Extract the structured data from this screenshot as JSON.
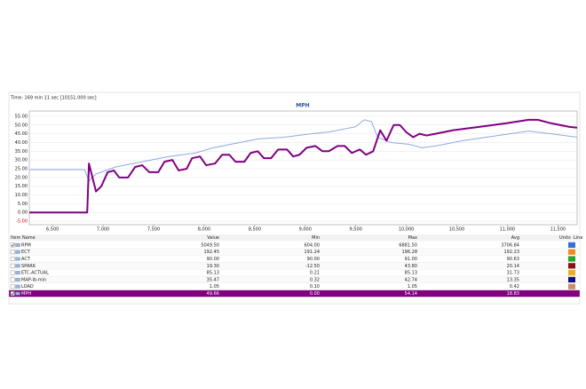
{
  "header": {
    "time": "Time: 169 min 11 sec [10151.000 sec]"
  },
  "chart_data": {
    "type": "line",
    "title": "MPH",
    "xlim": [
      6270,
      11690
    ],
    "ylim": [
      -7,
      58
    ],
    "xticks": [
      {
        "value": 6500,
        "label": "6,500"
      },
      {
        "value": 7000,
        "label": "7,000"
      },
      {
        "value": 7500,
        "label": "7,500"
      },
      {
        "value": 8000,
        "label": "8,000"
      },
      {
        "value": 8500,
        "label": "8,500"
      },
      {
        "value": 9000,
        "label": "9,000"
      },
      {
        "value": 9500,
        "label": "9,500"
      },
      {
        "value": 10000,
        "label": "10,000"
      },
      {
        "value": 10500,
        "label": "10,500"
      },
      {
        "value": 11000,
        "label": "11,000"
      },
      {
        "value": 11500,
        "label": "11,500"
      }
    ],
    "yticks": [
      {
        "value": 55,
        "label": "55.00"
      },
      {
        "value": 50,
        "label": "50.00"
      },
      {
        "value": 45,
        "label": "45.00"
      },
      {
        "value": 40,
        "label": "40.00"
      },
      {
        "value": 35,
        "label": "35.00"
      },
      {
        "value": 30,
        "label": "30.00"
      },
      {
        "value": 25,
        "label": "25.00"
      },
      {
        "value": 20,
        "label": "20.00"
      },
      {
        "value": 15,
        "label": "15.00"
      },
      {
        "value": 10,
        "label": "10.00"
      },
      {
        "value": 5,
        "label": "5.00"
      },
      {
        "value": 0,
        "label": "0.00"
      },
      {
        "value": -5,
        "label": "-5.00"
      }
    ],
    "grid": true,
    "series": [
      {
        "color": "#8fa8e0",
        "width": 1,
        "x": [
          6270,
          6817,
          6860,
          6930,
          7124,
          7388,
          7651,
          7915,
          8090,
          8266,
          8530,
          8794,
          9057,
          9233,
          9409,
          9497,
          9585,
          9655,
          9717,
          9848,
          10024,
          10156,
          10288,
          10552,
          10903,
          11211,
          11432,
          11690
        ],
        "values": [
          24.5,
          24.5,
          18,
          22,
          26,
          29,
          32,
          34,
          37,
          39,
          42,
          43,
          45,
          46,
          48,
          49,
          53,
          52,
          43,
          40,
          39,
          37,
          38,
          41,
          44,
          46.5,
          45,
          43
        ]
      },
      {
        "name": "MPH",
        "color": "#800080",
        "width": 2,
        "x": [
          6270,
          6843,
          6860,
          6930,
          6983,
          7045,
          7107,
          7159,
          7247,
          7317,
          7388,
          7458,
          7546,
          7607,
          7686,
          7748,
          7827,
          7880,
          7959,
          8020,
          8108,
          8178,
          8249,
          8310,
          8398,
          8460,
          8530,
          8592,
          8662,
          8732,
          8820,
          8881,
          8943,
          9013,
          9101,
          9171,
          9233,
          9320,
          9391,
          9461,
          9540,
          9602,
          9672,
          9742,
          9804,
          9875,
          9936,
          9998,
          10068,
          10130,
          10200,
          10288,
          10464,
          10728,
          10991,
          11211,
          11300,
          11432,
          11608,
          11690
        ],
        "values": [
          0,
          0,
          28,
          12,
          15,
          23,
          24,
          20,
          20,
          26,
          27,
          23,
          23,
          29,
          30,
          24,
          25,
          31,
          32,
          27,
          28,
          33,
          33,
          29,
          29,
          34,
          35,
          31,
          31,
          36,
          36,
          32,
          33,
          37,
          38,
          35,
          35,
          38,
          38,
          34,
          36,
          33,
          35,
          47,
          41,
          50,
          50,
          46,
          43,
          45,
          44,
          45,
          47,
          49,
          51,
          53,
          53,
          51,
          49,
          48.5
        ]
      }
    ]
  },
  "table": {
    "columns": [
      "Item Name",
      "Value",
      "Min",
      "Max",
      "Avg",
      "Units",
      "Line"
    ],
    "selected": 7,
    "rows": [
      {
        "checked": true,
        "color": "#3a6fd8",
        "cells": [
          "RPM",
          "5049.50",
          "604.00",
          "6881.50",
          "3706.84"
        ]
      },
      {
        "checked": false,
        "color": "#f08a1c",
        "cells": [
          "ECT",
          "192.45",
          "191.24",
          "196.28",
          "192.23"
        ]
      },
      {
        "checked": false,
        "color": "#2ea02e",
        "cells": [
          "ACT",
          "90.00",
          "90.00",
          "91.00",
          "90.63"
        ]
      },
      {
        "checked": false,
        "color": "#8b1010",
        "cells": [
          "SPARK",
          "19.30",
          "-12.50",
          "43.80",
          "20.14"
        ]
      },
      {
        "checked": false,
        "color": "#e8b020",
        "cells": [
          "ETC-ACTUAL",
          "85.13",
          "0.21",
          "85.13",
          "31.73"
        ]
      },
      {
        "checked": false,
        "color": "#101080",
        "cells": [
          "MAP-lb-min",
          "35.47",
          "0.32",
          "42.74",
          "13.35"
        ]
      },
      {
        "checked": false,
        "color": "#d08a6a",
        "cells": [
          "LOAD",
          "1.05",
          "0.10",
          "1.05",
          "0.42"
        ]
      },
      {
        "checked": true,
        "color": "#800080",
        "cells": [
          "MPH",
          "49.66",
          "0.00",
          "54.14",
          "18.83"
        ]
      }
    ]
  }
}
